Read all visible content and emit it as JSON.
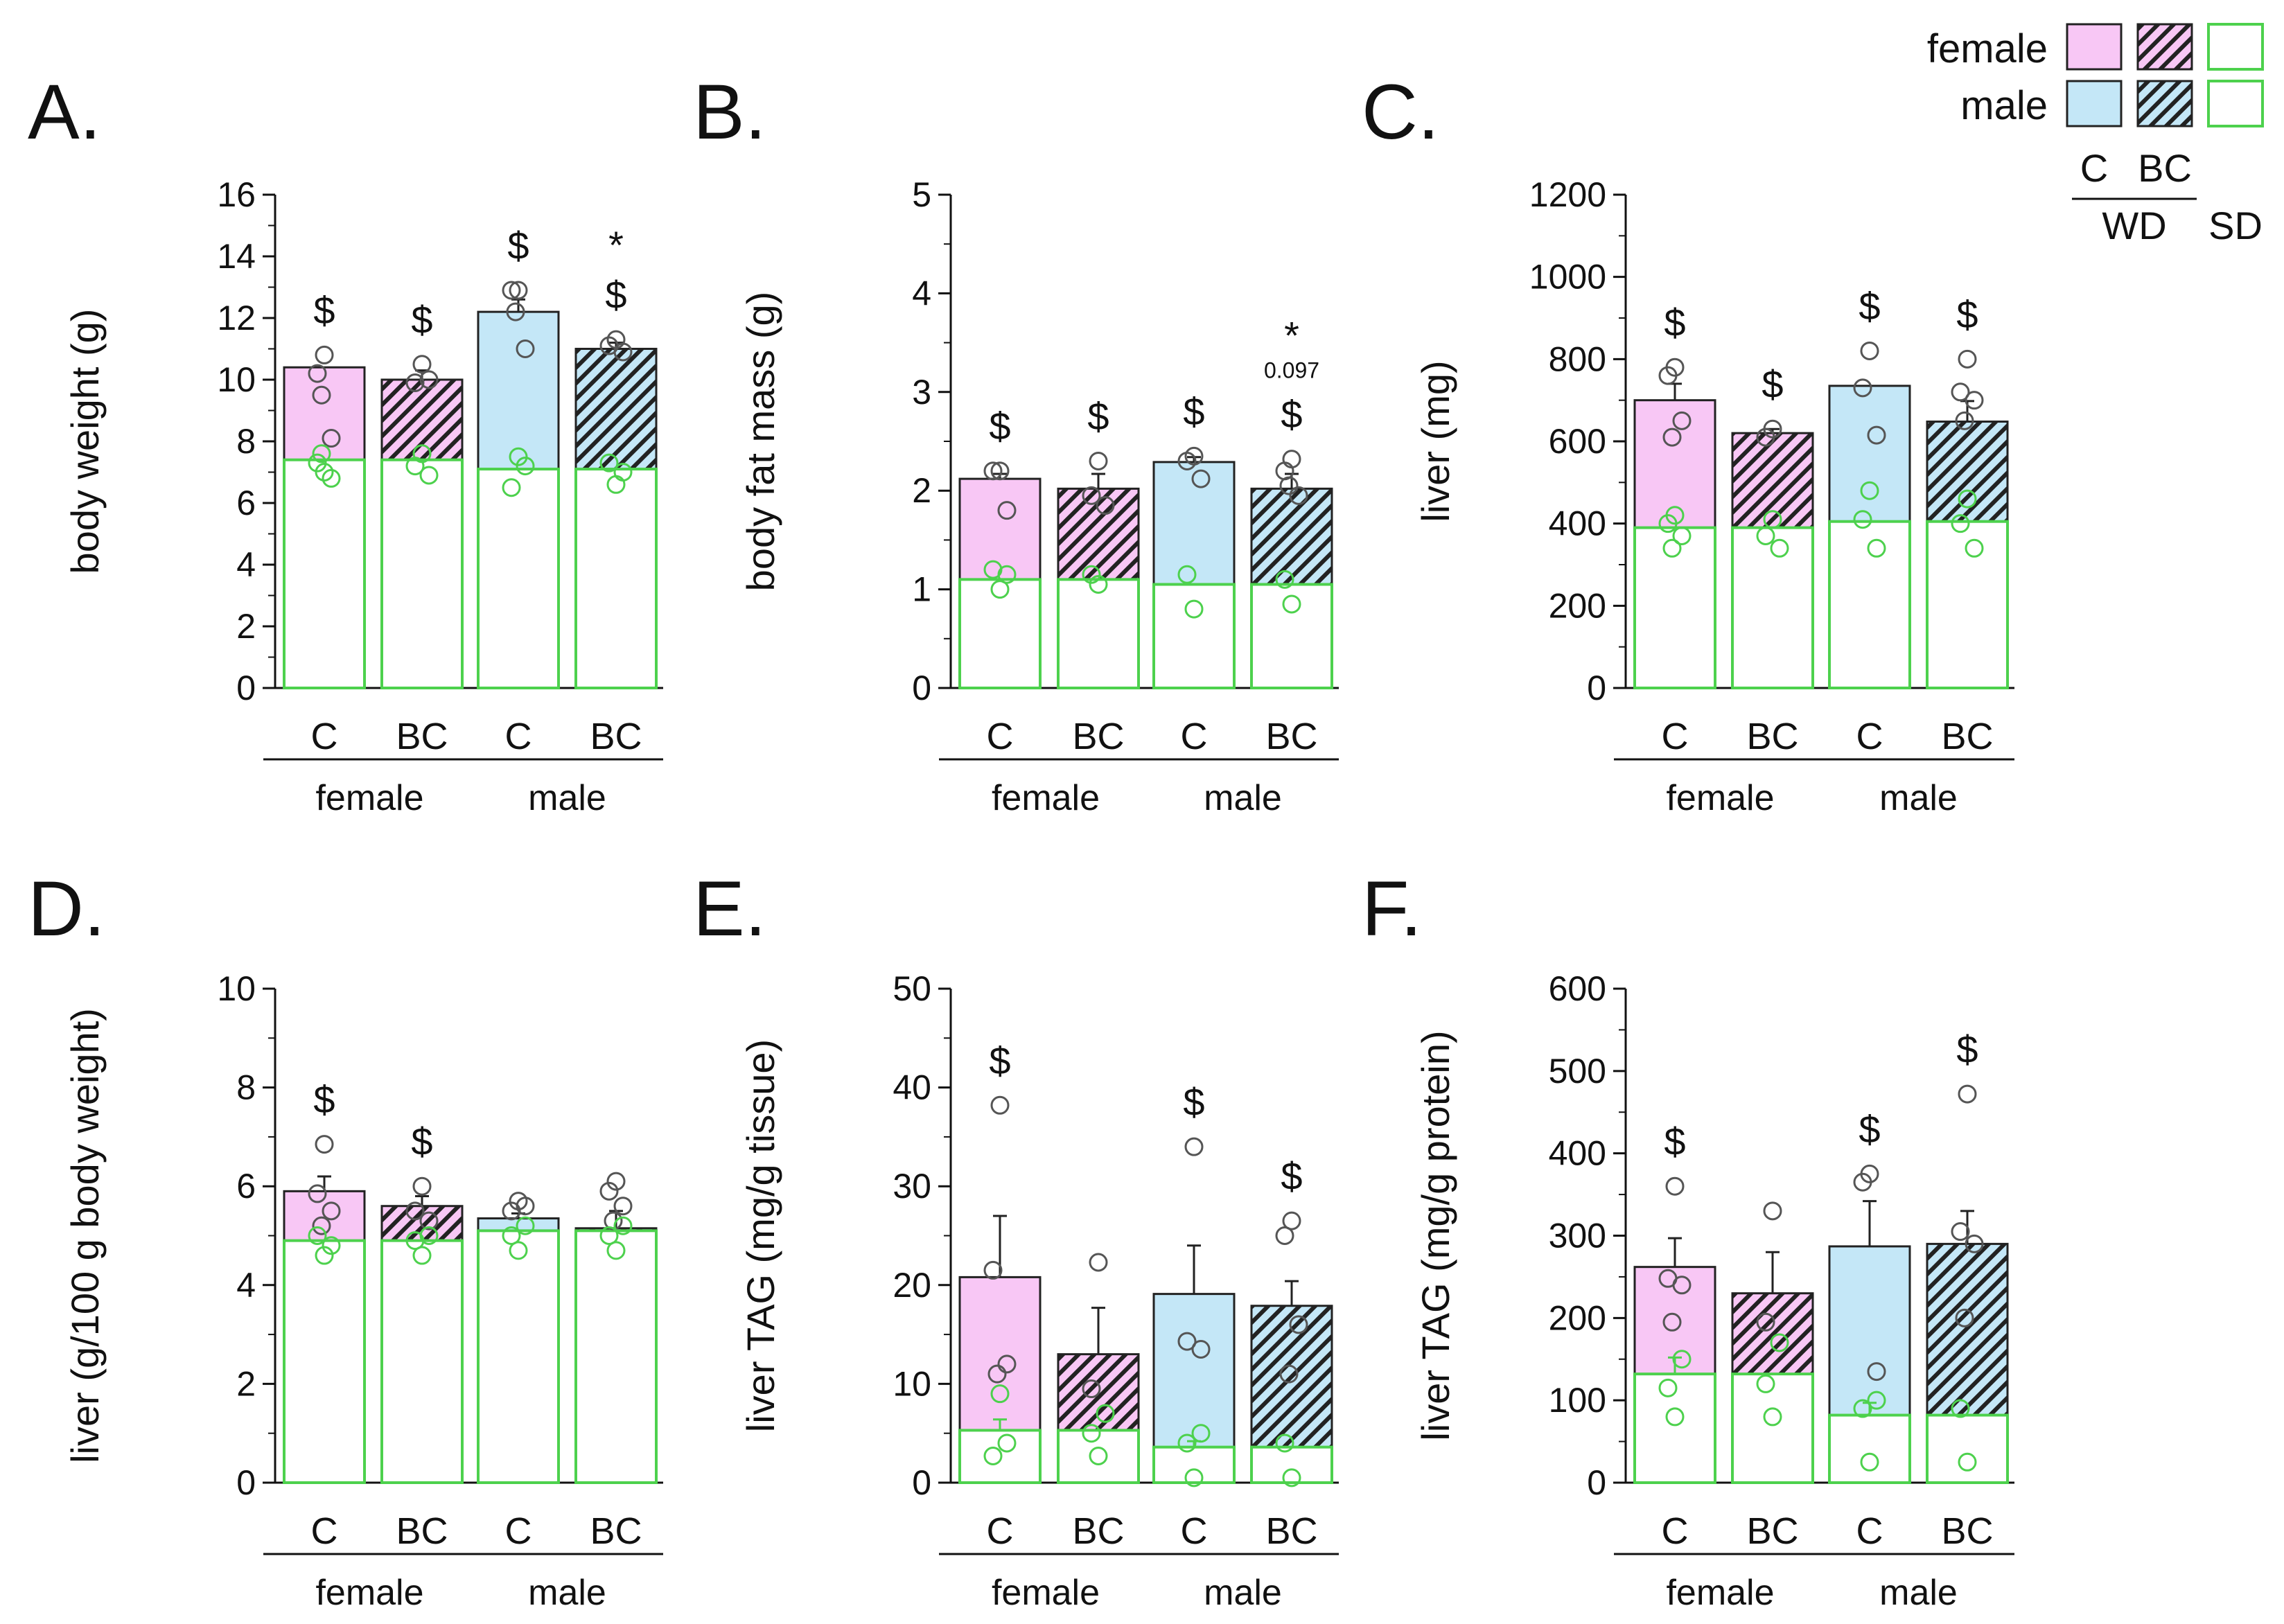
{
  "legend": {
    "female_label": "female",
    "male_label": "male",
    "c_label": "C",
    "bc_label": "BC",
    "wd_label": "WD",
    "sd_label": "SD"
  },
  "colors": {
    "female_fill": "#f8c7f5",
    "male_fill": "#c4e7f7",
    "sd_outline": "#4dd14d",
    "wd_outline": "#222222",
    "hatch": "#222222"
  },
  "chart_data": [
    {
      "type": "bar",
      "panel": "A.",
      "ylabel": "body weight (g)",
      "ylim": [
        0,
        16
      ],
      "yticks": [
        0,
        2,
        4,
        6,
        8,
        10,
        12,
        14,
        16
      ],
      "categories": [
        "C",
        "BC",
        "C",
        "BC"
      ],
      "groups": [
        "female",
        "male"
      ],
      "series": [
        {
          "name": "WD",
          "values": [
            10.4,
            10.0,
            12.2,
            11.0
          ],
          "error": [
            0,
            0.3,
            0.4,
            0.2
          ]
        },
        {
          "name": "SD",
          "values": [
            7.4,
            7.4,
            7.1,
            7.1
          ],
          "error": [
            0,
            0,
            0,
            0
          ]
        }
      ],
      "points_wd": [
        [
          10.8,
          10.2,
          8.1,
          9.5
        ],
        [
          10.5,
          9.9,
          10.0
        ],
        [
          12.9,
          12.9,
          11.0,
          12.2
        ],
        [
          11.3,
          11.1,
          10.9
        ]
      ],
      "points_sd": [
        [
          7.0,
          7.3,
          6.8,
          7.6
        ],
        [
          7.6,
          7.2,
          6.9
        ],
        [
          7.5,
          6.5,
          7.2
        ],
        [
          6.6,
          7.3,
          7.0
        ]
      ],
      "annotations": [
        {
          "bar": 0,
          "lines": [
            "$"
          ]
        },
        {
          "bar": 1,
          "lines": [
            "$"
          ]
        },
        {
          "bar": 2,
          "lines": [
            "$"
          ]
        },
        {
          "bar": 3,
          "lines": [
            "*",
            "$"
          ]
        }
      ]
    },
    {
      "type": "bar",
      "panel": "B.",
      "ylabel": "body fat mass (g)",
      "ylim": [
        0,
        5
      ],
      "yticks": [
        0,
        1,
        2,
        3,
        4,
        5
      ],
      "categories": [
        "C",
        "BC",
        "C",
        "BC"
      ],
      "groups": [
        "female",
        "male"
      ],
      "series": [
        {
          "name": "WD",
          "values": [
            2.12,
            2.02,
            2.29,
            2.02
          ],
          "error": [
            0.05,
            0.15,
            0.05,
            0.15
          ]
        },
        {
          "name": "SD",
          "values": [
            1.1,
            1.1,
            1.05,
            1.05
          ],
          "error": [
            0,
            0,
            0,
            0
          ]
        }
      ],
      "points_wd": [
        [
          2.2,
          2.2,
          1.8
        ],
        [
          2.3,
          1.95,
          1.85
        ],
        [
          2.35,
          2.3,
          2.12
        ],
        [
          2.32,
          2.2,
          1.95,
          2.05
        ]
      ],
      "points_sd": [
        [
          1.0,
          1.2,
          1.15
        ],
        [
          1.05,
          1.15
        ],
        [
          0.8,
          1.15
        ],
        [
          0.85,
          1.1
        ]
      ],
      "annotations": [
        {
          "bar": 0,
          "lines": [
            "$"
          ]
        },
        {
          "bar": 1,
          "lines": [
            "$"
          ]
        },
        {
          "bar": 2,
          "lines": [
            "$"
          ]
        },
        {
          "bar": 3,
          "lines": [
            "*",
            "0.097",
            "$"
          ]
        }
      ]
    },
    {
      "type": "bar",
      "panel": "C.",
      "ylabel": "liver (mg)",
      "ylim": [
        0,
        1200
      ],
      "yticks": [
        0,
        200,
        400,
        600,
        800,
        1000,
        1200
      ],
      "categories": [
        "C",
        "BC",
        "C",
        "BC"
      ],
      "groups": [
        "female",
        "male"
      ],
      "series": [
        {
          "name": "WD",
          "values": [
            700,
            620,
            735,
            648
          ],
          "error": [
            40,
            10,
            0,
            50
          ]
        },
        {
          "name": "SD",
          "values": [
            390,
            390,
            405,
            405
          ],
          "error": [
            0,
            0,
            0,
            0
          ]
        }
      ],
      "points_wd": [
        [
          780,
          760,
          650,
          610
        ],
        [
          630,
          610
        ],
        [
          820,
          730,
          615
        ],
        [
          800,
          720,
          700,
          650
        ]
      ],
      "points_sd": [
        [
          420,
          400,
          370,
          340
        ],
        [
          410,
          370,
          340
        ],
        [
          480,
          410,
          340
        ],
        [
          460,
          400,
          340
        ]
      ],
      "annotations": [
        {
          "bar": 0,
          "lines": [
            "$"
          ]
        },
        {
          "bar": 1,
          "lines": [
            "$"
          ]
        },
        {
          "bar": 2,
          "lines": [
            "$"
          ]
        },
        {
          "bar": 3,
          "lines": [
            "$"
          ]
        }
      ]
    },
    {
      "type": "bar",
      "panel": "D.",
      "ylabel": "liver (g/100 g body weight)",
      "ylim": [
        0,
        10
      ],
      "yticks": [
        0,
        2,
        4,
        6,
        8,
        10
      ],
      "categories": [
        "C",
        "BC",
        "C",
        "BC"
      ],
      "groups": [
        "female",
        "male"
      ],
      "series": [
        {
          "name": "WD",
          "values": [
            5.9,
            5.6,
            5.35,
            5.15
          ],
          "error": [
            0.3,
            0.2,
            0.1,
            0.35
          ]
        },
        {
          "name": "SD",
          "values": [
            4.9,
            4.9,
            5.1,
            5.1
          ],
          "error": [
            0,
            0,
            0,
            0
          ]
        }
      ],
      "points_wd": [
        [
          6.85,
          5.85,
          5.5,
          5.2
        ],
        [
          6.0,
          5.5,
          5.3
        ],
        [
          5.7,
          5.5,
          5.6
        ],
        [
          6.1,
          5.9,
          5.6,
          5.3
        ]
      ],
      "points_sd": [
        [
          4.6,
          5.0,
          4.8
        ],
        [
          4.6,
          4.9,
          5.0
        ],
        [
          4.7,
          5.0,
          5.2
        ],
        [
          4.7,
          5.0,
          5.2
        ]
      ],
      "annotations": [
        {
          "bar": 0,
          "lines": [
            "$"
          ]
        },
        {
          "bar": 1,
          "lines": [
            "$"
          ]
        }
      ]
    },
    {
      "type": "bar",
      "panel": "E.",
      "ylabel": "liver TAG (mg/g tissue)",
      "ylim": [
        0,
        50
      ],
      "yticks": [
        0,
        10,
        20,
        30,
        40,
        50
      ],
      "categories": [
        "C",
        "BC",
        "C",
        "BC"
      ],
      "groups": [
        "female",
        "male"
      ],
      "series": [
        {
          "name": "WD",
          "values": [
            20.8,
            13.0,
            19.1,
            17.9
          ],
          "error": [
            6.2,
            4.7,
            4.9,
            2.5
          ]
        },
        {
          "name": "SD",
          "values": [
            5.3,
            5.3,
            3.6,
            3.6
          ],
          "error": [
            1.1,
            0,
            0.6,
            0
          ]
        }
      ],
      "points_wd": [
        [
          38.2,
          21.5,
          12.0,
          11.0
        ],
        [
          22.3,
          9.5
        ],
        [
          34.0,
          14.3,
          13.5
        ],
        [
          26.5,
          25.0,
          16.0,
          11.0
        ]
      ],
      "points_sd": [
        [
          9.0,
          2.7,
          4.0
        ],
        [
          2.7,
          5.0,
          7.0
        ],
        [
          0.5,
          4.0,
          5.0
        ],
        [
          0.5,
          4.0
        ]
      ],
      "annotations": [
        {
          "bar": 0,
          "lines": [
            "$"
          ]
        },
        {
          "bar": 2,
          "lines": [
            "$"
          ]
        },
        {
          "bar": 3,
          "lines": [
            "$"
          ]
        }
      ]
    },
    {
      "type": "bar",
      "panel": "F.",
      "ylabel": "liver TAG (mg/g protein)",
      "ylim": [
        0,
        600
      ],
      "yticks": [
        0,
        100,
        200,
        300,
        400,
        500,
        600
      ],
      "categories": [
        "C",
        "BC",
        "C",
        "BC"
      ],
      "groups": [
        "female",
        "male"
      ],
      "series": [
        {
          "name": "WD",
          "values": [
            262,
            230,
            287,
            290
          ],
          "error": [
            35,
            50,
            55,
            40
          ]
        },
        {
          "name": "SD",
          "values": [
            132,
            132,
            82,
            82
          ],
          "error": [
            20,
            0,
            15,
            0
          ]
        }
      ],
      "points_wd": [
        [
          360,
          248,
          240,
          195
        ],
        [
          330,
          195
        ],
        [
          375,
          365,
          135
        ],
        [
          472,
          305,
          290,
          200
        ]
      ],
      "points_sd": [
        [
          80,
          115,
          150
        ],
        [
          80,
          120,
          170
        ],
        [
          25,
          90,
          100
        ],
        [
          25,
          90
        ]
      ],
      "annotations": [
        {
          "bar": 0,
          "lines": [
            "$"
          ]
        },
        {
          "bar": 2,
          "lines": [
            "$"
          ]
        },
        {
          "bar": 3,
          "lines": [
            "$"
          ]
        }
      ]
    }
  ]
}
